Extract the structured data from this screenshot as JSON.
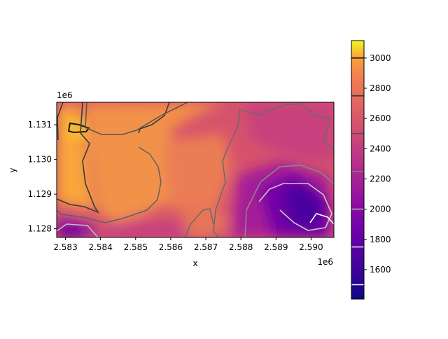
{
  "chart_data": {
    "type": "heatmap",
    "title": "",
    "xlabel": "x",
    "ylabel": "y",
    "x_offset_label": "1e6",
    "y_offset_label": "1e6",
    "xlim": [
      2.58275,
      2.59065
    ],
    "ylim": [
      1.12775,
      1.13165
    ],
    "x_ticks": [
      2.583,
      2.584,
      2.585,
      2.586,
      2.587,
      2.588,
      2.589,
      2.59
    ],
    "x_tick_labels": [
      "2.583",
      "2.584",
      "2.585",
      "2.586",
      "2.587",
      "2.588",
      "2.589",
      "2.590"
    ],
    "y_ticks": [
      1.128,
      1.129,
      1.13,
      1.131
    ],
    "y_tick_labels": [
      "1.128",
      "1.129",
      "1.130",
      "1.131"
    ],
    "colormap": "plasma",
    "colorbar": {
      "vmin": 1405,
      "vmax": 3115,
      "ticks": [
        1600,
        1800,
        2000,
        2200,
        2400,
        2600,
        2800,
        3000
      ],
      "tick_labels": [
        "1600",
        "1800",
        "2000",
        "2200",
        "2400",
        "2600",
        "2800",
        "3000"
      ],
      "contour_levels": [
        1500,
        1750,
        2000,
        2250,
        2500,
        2750,
        3000
      ]
    },
    "estimated_features": [
      {
        "kind": "peak",
        "x": 2.58335,
        "y": 1.13085,
        "value": 3000
      },
      {
        "kind": "high_plateau",
        "x": 2.5844,
        "y": 1.1297,
        "value": 2700
      },
      {
        "kind": "ridge",
        "x": 2.5868,
        "y": 1.1286,
        "value": 2650
      },
      {
        "kind": "valley_min",
        "x": 2.5898,
        "y": 1.1285,
        "value": 1500
      },
      {
        "kind": "southwest_low",
        "x": 2.5831,
        "y": 1.1278,
        "value": 1800
      }
    ]
  }
}
